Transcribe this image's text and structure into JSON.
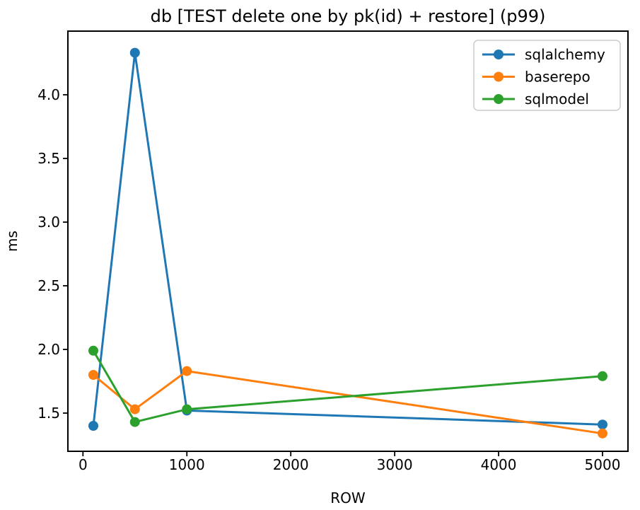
{
  "figure": {
    "background": "#ffffff",
    "text_color": "#000000",
    "frame_color": "#000000"
  },
  "chart_data": {
    "type": "line",
    "title": "db [TEST delete one by pk(id) + restore] (p99)",
    "xlabel": "ROW",
    "ylabel": "ms",
    "x": [
      100,
      500,
      1000,
      5000
    ],
    "series": [
      {
        "name": "sqlalchemy",
        "color": "#1f77b4",
        "values": [
          1.4,
          4.33,
          1.52,
          1.41
        ]
      },
      {
        "name": "baserepo",
        "color": "#ff7f0e",
        "values": [
          1.8,
          1.53,
          1.83,
          1.34
        ]
      },
      {
        "name": "sqlmodel",
        "color": "#2ca02c",
        "values": [
          1.99,
          1.43,
          1.53,
          1.79
        ]
      }
    ],
    "xlim": [
      -145,
      5245
    ],
    "ylim": [
      1.2,
      4.5
    ],
    "xticks": [
      0,
      1000,
      2000,
      3000,
      4000,
      5000
    ],
    "yticks": [
      1.5,
      2.0,
      2.5,
      3.0,
      3.5,
      4.0
    ],
    "grid": false,
    "marker": "circle",
    "legend": {
      "position": "upper right",
      "labels": [
        "sqlalchemy",
        "baserepo",
        "sqlmodel"
      ],
      "border_color": "#cccccc",
      "background": "#ffffff"
    }
  }
}
